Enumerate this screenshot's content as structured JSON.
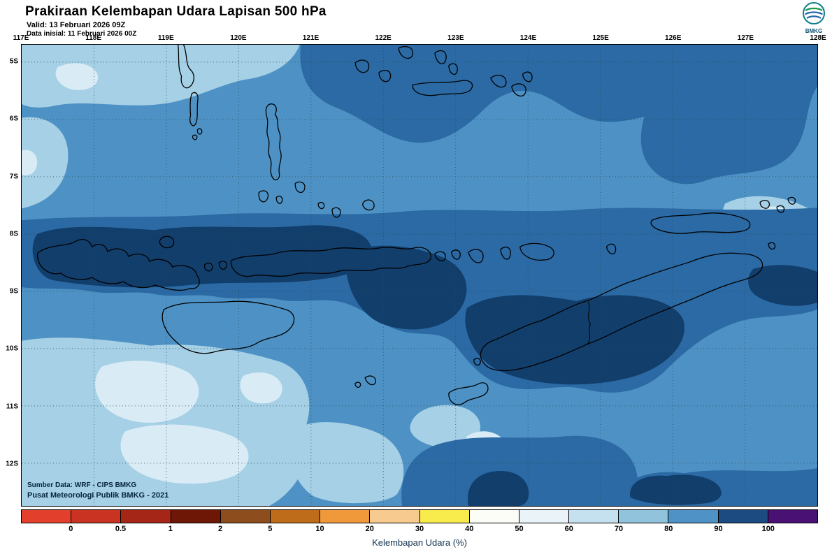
{
  "header": {
    "title": "Prakiraan Kelembapan Udara Lapisan 500 hPa",
    "valid_line": "Valid: 13 Februari 2026 09Z",
    "init_line": "Data inisial: 11 Februari 2026 00Z",
    "logo_text": "BMKG"
  },
  "map": {
    "lon_labels": [
      "117E",
      "118E",
      "119E",
      "120E",
      "121E",
      "122E",
      "123E",
      "124E",
      "125E",
      "126E",
      "127E",
      "128E"
    ],
    "lat_labels": [
      "5S",
      "6S",
      "7S",
      "8S",
      "9S",
      "10S",
      "11S",
      "12S"
    ],
    "source_line1": "Sumber Data: WRF - CIPS BMKG",
    "source_line2": "Pusat Meteorologi Publik BMKG - 2021",
    "palette": {
      "lightest": "#d9ecf6",
      "light": "#a6d0e6",
      "medium": "#4e92c5",
      "dark": "#2b6aa4",
      "navy": "#123e6c"
    },
    "coast_color": "#000000",
    "grid_color": "#2c4a56"
  },
  "colorbar": {
    "label": "Kelembapan Udara (%)",
    "tick_labels": [
      "0",
      "0.5",
      "1",
      "2",
      "5",
      "10",
      "20",
      "30",
      "40",
      "50",
      "60",
      "70",
      "80",
      "90",
      "100"
    ],
    "segment_colors": [
      "#e2402d",
      "#ca3222",
      "#a52516",
      "#6e1706",
      "#8d4d1d",
      "#bf6c1a",
      "#f0993a",
      "#f7ca90",
      "#f8ec4c",
      "#fdfdf8",
      "#e9f3f8",
      "#c5e1ef",
      "#92c3dc",
      "#4f93c6",
      "#1b4b80",
      "#4a1174"
    ]
  },
  "chart_data": {
    "type": "heatmap",
    "title": "Prakiraan Kelembapan Udara Lapisan 500 hPa",
    "variable": "Kelembapan Udara (%)",
    "level": "500 hPa",
    "valid_time": "13 Februari 2026 09Z",
    "initial_time": "11 Februari 2026 00Z",
    "x_ticks": [
      "117E",
      "118E",
      "119E",
      "120E",
      "121E",
      "122E",
      "123E",
      "124E",
      "125E",
      "126E",
      "127E",
      "128E"
    ],
    "y_ticks": [
      "5S",
      "6S",
      "7S",
      "8S",
      "9S",
      "10S",
      "11S",
      "12S"
    ],
    "contour_levels": [
      0,
      0.5,
      1,
      2,
      5,
      10,
      20,
      30,
      40,
      50,
      60,
      70,
      80,
      90,
      100
    ],
    "legend_position": "bottom"
  }
}
